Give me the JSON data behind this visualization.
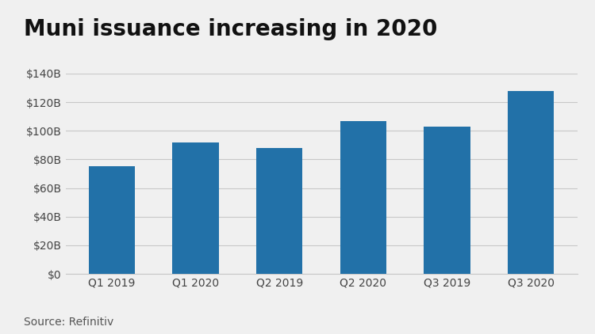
{
  "title": "Muni issuance increasing in 2020",
  "categories": [
    "Q1 2019",
    "Q1 2020",
    "Q2 2019",
    "Q2 2020",
    "Q3 2019",
    "Q3 2020"
  ],
  "values": [
    75,
    92,
    88,
    107,
    103,
    128
  ],
  "bar_color": "#2271a8",
  "background_color": "#f0f0f0",
  "ylim": [
    0,
    140
  ],
  "yticks": [
    0,
    20,
    40,
    60,
    80,
    100,
    120,
    140
  ],
  "source_text": "Source: Refinitiv",
  "title_fontsize": 20,
  "tick_fontsize": 10,
  "source_fontsize": 10,
  "grid_color": "#c8c8c8"
}
